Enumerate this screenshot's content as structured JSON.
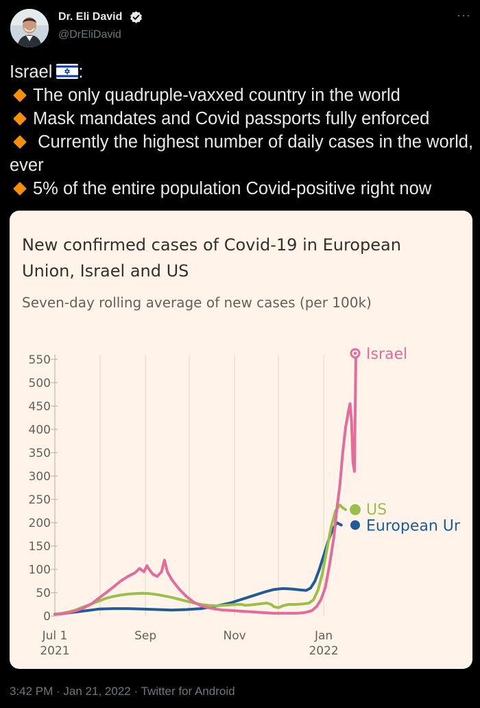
{
  "author": {
    "name": "Dr. Eli David",
    "handle": "@DrEliDavid"
  },
  "tweet": {
    "heading_text": "Israel",
    "heading_flag": "israel-flag-icon",
    "heading_suffix": ":",
    "bullets": [
      "The only quadruple-vaxxed country in the world",
      "Mask mandates and Covid passports fully enforced",
      " Currently the highest number of daily cases in the world, ever",
      "5% of the entire population Covid-positive right now"
    ]
  },
  "footer": {
    "time": "3:42 PM",
    "sep1": " · ",
    "date": "Jan 21, 2022",
    "sep2": " · ",
    "source": "Twitter for Android"
  },
  "icons": {
    "verified": "verified-badge-icon",
    "more": "more-icon",
    "bullet": "orange-diamond-icon"
  },
  "colors": {
    "background": "#000000",
    "text": "#e7e9ea",
    "muted": "#71767b",
    "card_bg": "#fff3ea",
    "bullet": "#f4900c",
    "verified": "#e7e9ea"
  },
  "chart_data": {
    "type": "line",
    "title": "New confirmed cases of Covid-19 in European Union, Israel and US",
    "title_lines": [
      "New confirmed cases of Covid-19 in European",
      "Union, Israel and US"
    ],
    "subtitle": "Seven-day rolling average of new cases (per 100k)",
    "ylim": [
      0,
      560
    ],
    "yticks": [
      0,
      50,
      100,
      150,
      200,
      250,
      300,
      350,
      400,
      450,
      500,
      550
    ],
    "xticks": [
      {
        "day": 0,
        "label": "Jul 1",
        "sub": "2021"
      },
      {
        "day": 62,
        "label": "Sep",
        "sub": ""
      },
      {
        "day": 123,
        "label": "Nov",
        "sub": ""
      },
      {
        "day": 184,
        "label": "Jan",
        "sub": "2022"
      }
    ],
    "gridlines_x_days": [
      0,
      31,
      62,
      92,
      123,
      153,
      184
    ],
    "grid": true,
    "series": [
      {
        "name": "European Union",
        "label": "European Ur",
        "color": "#1f5a99",
        "end_value": 195,
        "points": [
          [
            0,
            4
          ],
          [
            5,
            5
          ],
          [
            10,
            7
          ],
          [
            15,
            9
          ],
          [
            20,
            11
          ],
          [
            25,
            13
          ],
          [
            30,
            15
          ],
          [
            40,
            16
          ],
          [
            50,
            16
          ],
          [
            60,
            15
          ],
          [
            70,
            14
          ],
          [
            80,
            13
          ],
          [
            90,
            14
          ],
          [
            100,
            16
          ],
          [
            108,
            20
          ],
          [
            114,
            24
          ],
          [
            120,
            28
          ],
          [
            126,
            34
          ],
          [
            132,
            40
          ],
          [
            138,
            46
          ],
          [
            144,
            52
          ],
          [
            150,
            57
          ],
          [
            156,
            59
          ],
          [
            162,
            58
          ],
          [
            168,
            56
          ],
          [
            172,
            55
          ],
          [
            175,
            60
          ],
          [
            178,
            75
          ],
          [
            181,
            100
          ],
          [
            184,
            130
          ],
          [
            187,
            160
          ],
          [
            190,
            185
          ],
          [
            193,
            200
          ],
          [
            196,
            195
          ]
        ]
      },
      {
        "name": "US",
        "label": "US",
        "color": "#9abf4a",
        "end_value": 228,
        "points": [
          [
            0,
            4
          ],
          [
            5,
            6
          ],
          [
            10,
            9
          ],
          [
            15,
            14
          ],
          [
            20,
            20
          ],
          [
            25,
            26
          ],
          [
            30,
            32
          ],
          [
            35,
            38
          ],
          [
            40,
            42
          ],
          [
            45,
            45
          ],
          [
            50,
            47
          ],
          [
            55,
            48
          ],
          [
            60,
            49
          ],
          [
            65,
            48
          ],
          [
            70,
            46
          ],
          [
            75,
            43
          ],
          [
            80,
            40
          ],
          [
            85,
            36
          ],
          [
            90,
            32
          ],
          [
            95,
            28
          ],
          [
            100,
            25
          ],
          [
            105,
            23
          ],
          [
            110,
            22
          ],
          [
            115,
            23
          ],
          [
            120,
            24
          ],
          [
            125,
            25
          ],
          [
            128,
            25
          ],
          [
            130,
            23
          ],
          [
            134,
            24
          ],
          [
            140,
            26
          ],
          [
            145,
            28
          ],
          [
            148,
            25
          ],
          [
            150,
            20
          ],
          [
            153,
            18
          ],
          [
            156,
            22
          ],
          [
            160,
            25
          ],
          [
            165,
            25
          ],
          [
            170,
            26
          ],
          [
            174,
            28
          ],
          [
            177,
            35
          ],
          [
            180,
            55
          ],
          [
            183,
            90
          ],
          [
            186,
            140
          ],
          [
            189,
            190
          ],
          [
            192,
            225
          ],
          [
            195,
            238
          ],
          [
            197,
            232
          ],
          [
            199,
            228
          ]
        ]
      },
      {
        "name": "Israel",
        "label": "Israel",
        "color": "#e36c9a",
        "end_value": 563,
        "points": [
          [
            0,
            4
          ],
          [
            5,
            5
          ],
          [
            10,
            8
          ],
          [
            15,
            12
          ],
          [
            20,
            18
          ],
          [
            25,
            26
          ],
          [
            30,
            38
          ],
          [
            35,
            50
          ],
          [
            40,
            62
          ],
          [
            45,
            75
          ],
          [
            50,
            85
          ],
          [
            55,
            93
          ],
          [
            58,
            102
          ],
          [
            61,
            95
          ],
          [
            63,
            108
          ],
          [
            65,
            98
          ],
          [
            67,
            90
          ],
          [
            70,
            85
          ],
          [
            73,
            95
          ],
          [
            75,
            120
          ],
          [
            77,
            95
          ],
          [
            80,
            78
          ],
          [
            85,
            58
          ],
          [
            90,
            42
          ],
          [
            95,
            30
          ],
          [
            100,
            22
          ],
          [
            105,
            18
          ],
          [
            110,
            15
          ],
          [
            115,
            13
          ],
          [
            120,
            12
          ],
          [
            125,
            11
          ],
          [
            130,
            10
          ],
          [
            135,
            9
          ],
          [
            140,
            8
          ],
          [
            145,
            7
          ],
          [
            150,
            6
          ],
          [
            155,
            6
          ],
          [
            160,
            6
          ],
          [
            165,
            6
          ],
          [
            170,
            7
          ],
          [
            173,
            9
          ],
          [
            176,
            12
          ],
          [
            179,
            20
          ],
          [
            182,
            35
          ],
          [
            185,
            60
          ],
          [
            188,
            110
          ],
          [
            191,
            170
          ],
          [
            193,
            230
          ],
          [
            195,
            280
          ],
          [
            197,
            350
          ],
          [
            199,
            405
          ],
          [
            201,
            440
          ],
          [
            202,
            455
          ],
          [
            203,
            420
          ],
          [
            204,
            330
          ],
          [
            205,
            310
          ],
          [
            206,
            563
          ]
        ]
      }
    ]
  }
}
